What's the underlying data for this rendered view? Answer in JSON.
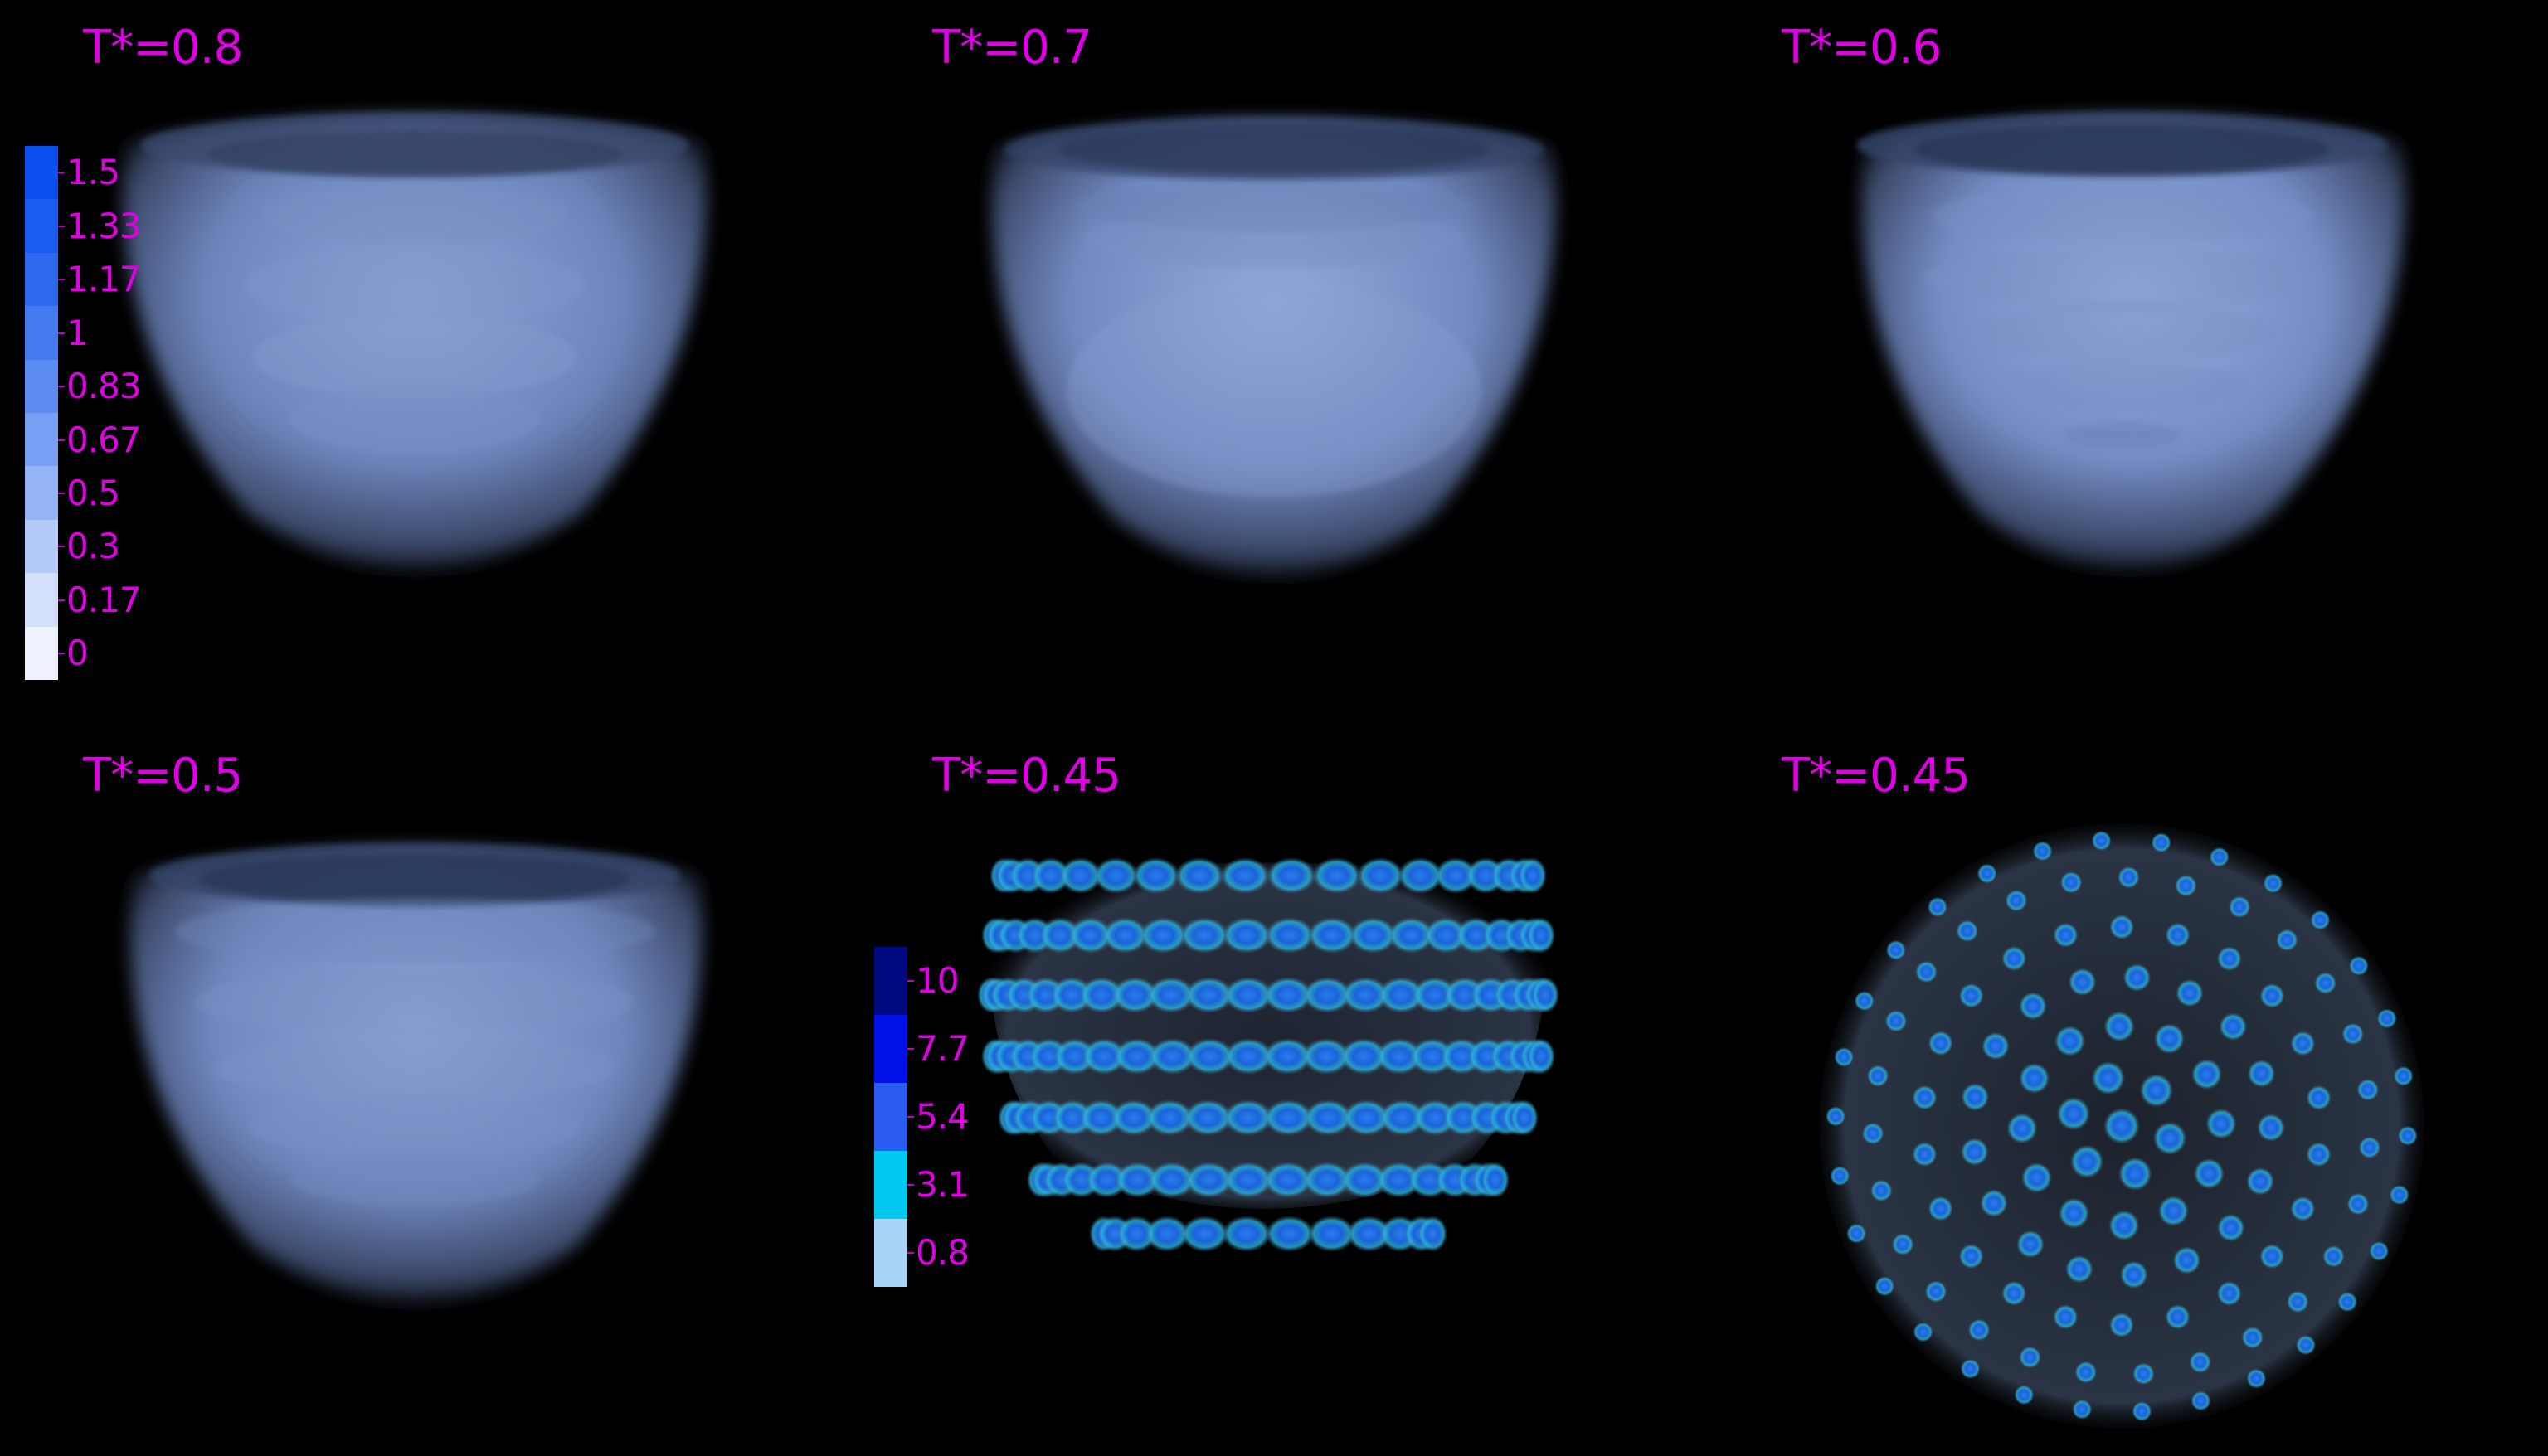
{
  "panels": [
    {
      "label": "T*=0.8"
    },
    {
      "label": "T*=0.7"
    },
    {
      "label": "T*=0.6"
    },
    {
      "label": "T*=0.5"
    },
    {
      "label": "T*=0.45"
    },
    {
      "label": "T*=0.45"
    }
  ],
  "colorbar_density": {
    "labels": [
      "1.5",
      "1.33",
      "1.17",
      "1",
      "0.83",
      "0.67",
      "0.5",
      "0.3",
      "0.17",
      "0"
    ],
    "colors": [
      "#0a50f0",
      "#1a5cf0",
      "#2e6af0",
      "#437af0",
      "#5c8cf2",
      "#789ff4",
      "#95b4f6",
      "#b4caf8",
      "#d4e0fb",
      "#eef2fd"
    ]
  },
  "colorbar_peak": {
    "labels": [
      "10",
      "7.7",
      "5.4",
      "3.1",
      "0.8"
    ],
    "colors": [
      "#000a80",
      "#0010e8",
      "#2a5cf0",
      "#00c8f0",
      "#a8d4f8"
    ]
  },
  "colors": {
    "label": "#e100e6",
    "background": "#000000",
    "shell": "#7a92c8",
    "particle_core": "#1a70e8",
    "particle_halo": "#2ab8e0"
  }
}
